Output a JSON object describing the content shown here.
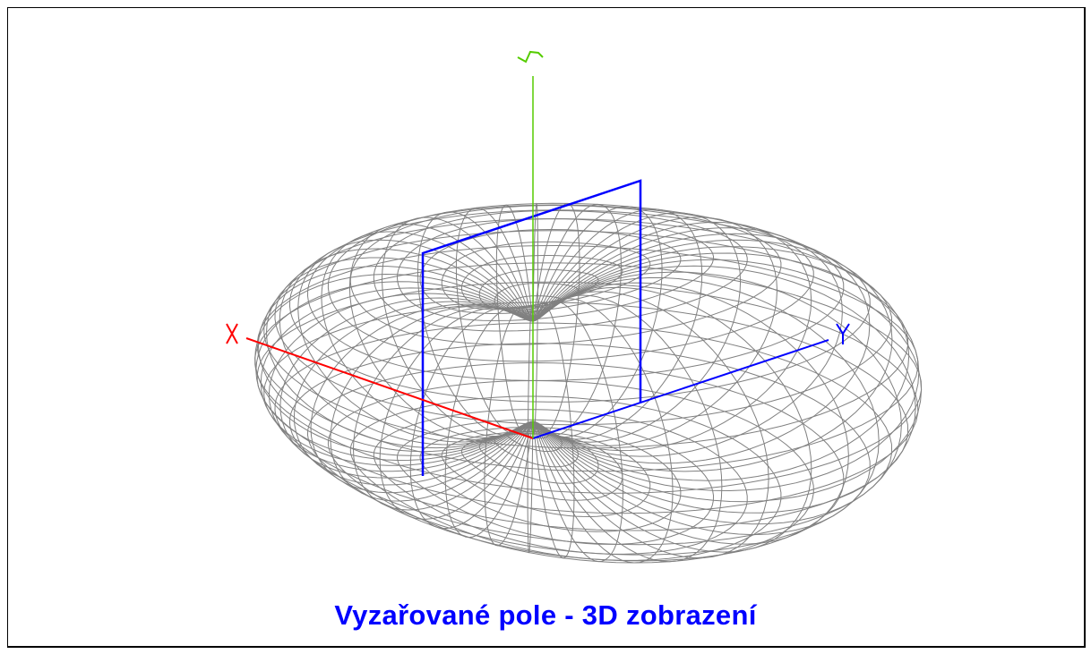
{
  "title": "Vyzařované pole - 3D zobrazení",
  "axes": {
    "x": {
      "label": "X",
      "color": "#ff0000"
    },
    "y": {
      "label": "Y",
      "color": "#0000ff"
    },
    "z": {
      "label": "Z",
      "color": "#55cc00"
    }
  },
  "colors": {
    "mesh": "#808080",
    "plane": "#0000ff",
    "title": "#0000ff"
  }
}
